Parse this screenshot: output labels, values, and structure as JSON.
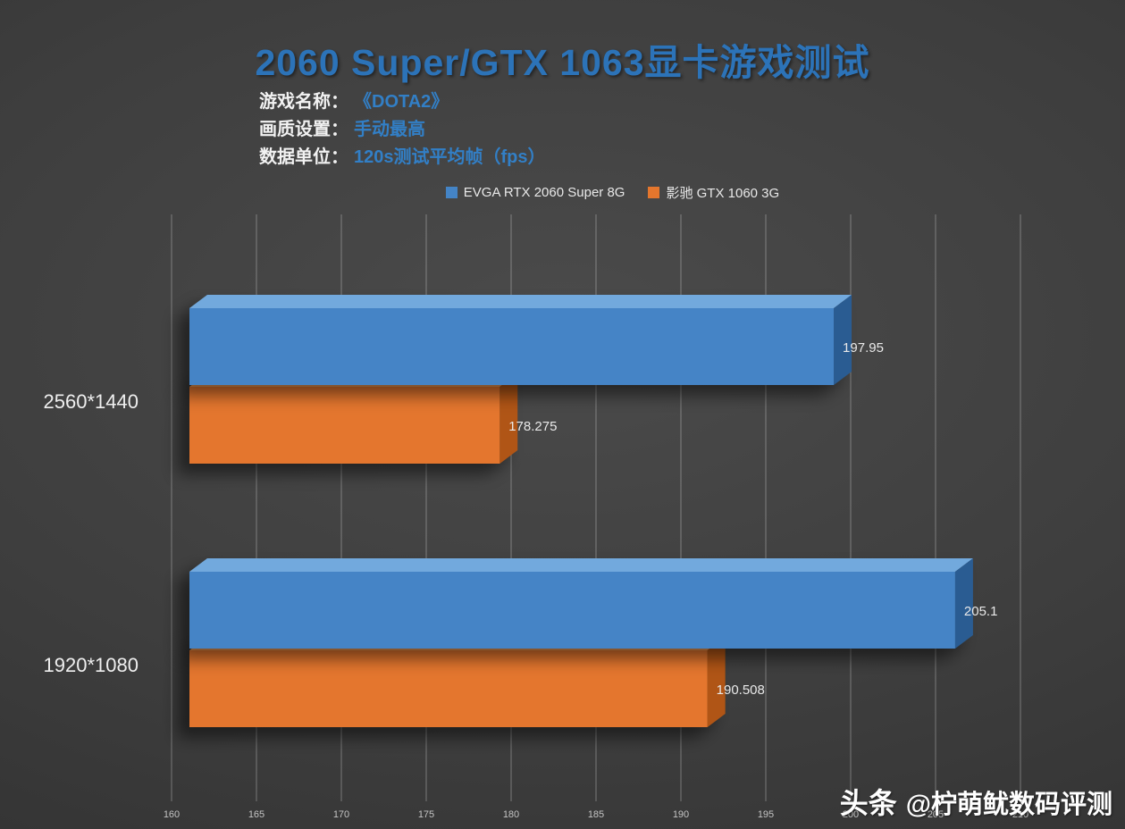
{
  "chart_data": {
    "type": "bar",
    "style": "3d",
    "orientation": "horizontal",
    "title": "2060 Super/GTX 1063显卡游戏测试",
    "meta": [
      {
        "label": "游戏名称：",
        "value": "《DOTA2》"
      },
      {
        "label": "画质设置：",
        "value": "手动最高"
      },
      {
        "label": "数据单位：",
        "value": "120s测试平均帧（fps）"
      }
    ],
    "categories": [
      "2560*1440",
      "1920*1080"
    ],
    "series": [
      {
        "name": "EVGA RTX 2060 Super 8G",
        "color_front": "#4484c6",
        "color_top": "#72a9dd",
        "color_side": "#2b5c92",
        "values": [
          197.95,
          205.1
        ],
        "labels": [
          "197.95",
          "205.1"
        ]
      },
      {
        "name": "影驰 GTX 1060 3G",
        "color_front": "#e4762d",
        "color_top": "#f19a52",
        "color_side": "#b05513",
        "values": [
          178.275,
          190.508
        ],
        "labels": [
          "178.275",
          "190.508"
        ]
      }
    ],
    "value_axis": {
      "min": 160,
      "max": 210,
      "step": 5,
      "tick_labels": [
        "160",
        "165",
        "170",
        "175",
        "180",
        "185",
        "190",
        "195",
        "200",
        "205",
        "210"
      ]
    },
    "grid": true,
    "legend_position": "top-center"
  },
  "watermark": {
    "brand": "头条",
    "handle": "@柠萌鱿数码评测"
  }
}
